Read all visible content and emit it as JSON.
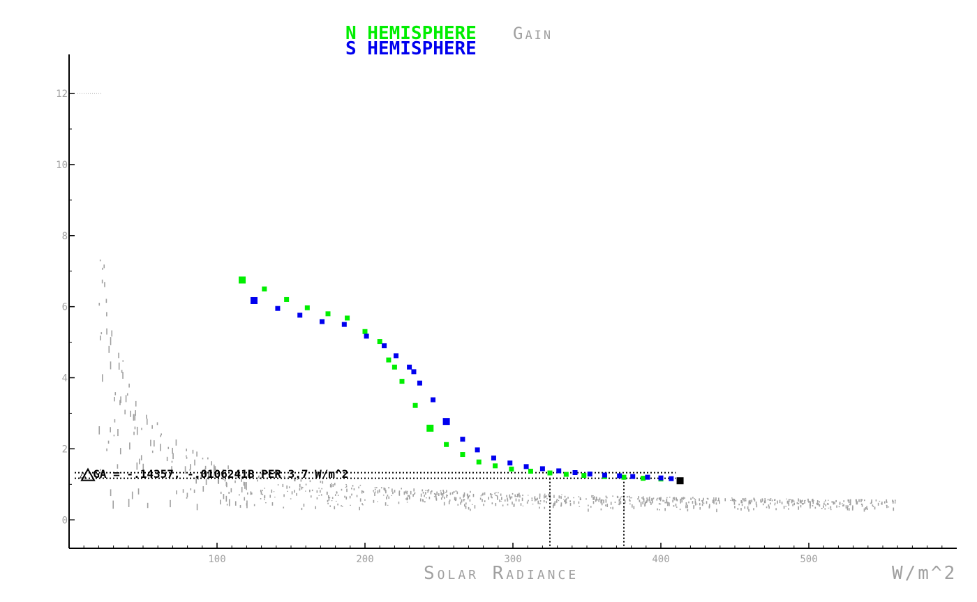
{
  "chart_data": {
    "type": "scatter",
    "title": "",
    "legend": [
      {
        "text": "N HEMISPHERE",
        "color": "#00ee00"
      },
      {
        "text": "Gain",
        "color": "#a0a0a0"
      },
      {
        "text": "S HEMISPHERE",
        "color": "#0000ee"
      }
    ],
    "xlabel": "Solar Radiance",
    "xunit": "W/m^2",
    "xlim": [
      0,
      600
    ],
    "ylim": [
      -0.8,
      13.1
    ],
    "xticks": [
      100,
      200,
      300,
      400,
      500
    ],
    "yticks": [
      0,
      2,
      4,
      6,
      8,
      10,
      12
    ],
    "annotation": "△ GA = -.14357, -.0106241B PER 3.7 W/m^2",
    "annotation_y": 1.25,
    "vlines_x": [
      325,
      375
    ],
    "colors": {
      "north": "#00ee00",
      "south": "#0000ee",
      "background": "#a0a0a0",
      "end": "#000000",
      "axis": "#000000"
    },
    "series": [
      {
        "name": "N HEMISPHERE",
        "x": [
          117,
          132,
          147,
          161,
          175,
          188,
          200,
          210,
          216,
          220,
          225,
          234,
          244,
          255,
          266,
          277,
          288,
          299,
          312,
          325,
          336,
          348,
          362,
          375,
          388,
          400
        ],
        "y": [
          6.75,
          6.5,
          6.2,
          5.97,
          5.8,
          5.68,
          5.3,
          5.02,
          4.5,
          4.3,
          3.9,
          3.22,
          2.58,
          2.12,
          1.84,
          1.63,
          1.52,
          1.43,
          1.37,
          1.32,
          1.28,
          1.25,
          1.22,
          1.2,
          1.17,
          1.15
        ]
      },
      {
        "name": "S HEMISPHERE",
        "x": [
          125,
          141,
          156,
          171,
          186,
          201,
          213,
          221,
          230,
          233,
          237,
          246,
          255,
          266,
          276,
          287,
          298,
          309,
          320,
          331,
          342,
          352,
          362,
          372,
          381,
          391,
          400,
          407
        ],
        "y": [
          6.17,
          5.95,
          5.76,
          5.58,
          5.5,
          5.17,
          4.9,
          4.62,
          4.3,
          4.17,
          3.85,
          3.38,
          2.77,
          2.27,
          1.97,
          1.74,
          1.6,
          1.5,
          1.44,
          1.38,
          1.33,
          1.29,
          1.26,
          1.24,
          1.22,
          1.2,
          1.18,
          1.16
        ]
      },
      {
        "name": "",
        "x": [
          413
        ],
        "y": [
          1.1
        ]
      }
    ]
  }
}
